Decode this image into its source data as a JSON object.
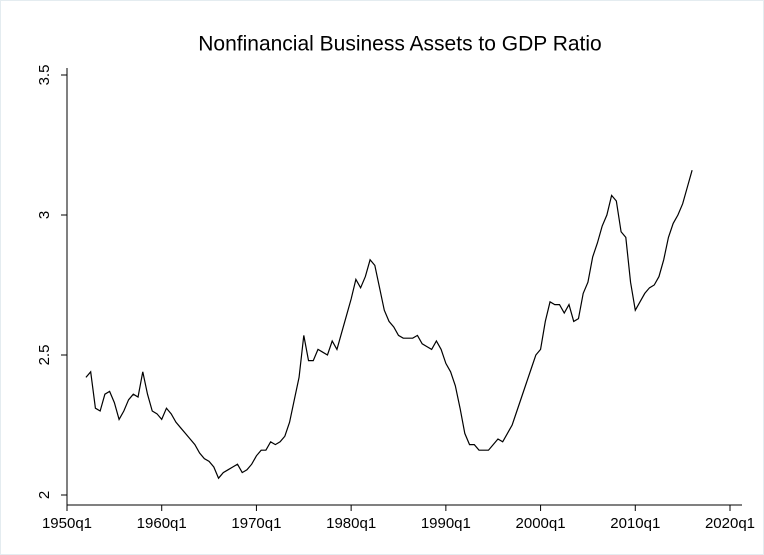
{
  "chart_data": {
    "type": "line",
    "title": "Nonfinancial Business Assets to GDP Ratio",
    "x": [
      "1952q1",
      "1952q3",
      "1953q1",
      "1953q3",
      "1954q1",
      "1954q3",
      "1955q1",
      "1955q3",
      "1956q1",
      "1956q3",
      "1957q1",
      "1957q3",
      "1958q1",
      "1958q3",
      "1959q1",
      "1959q3",
      "1960q1",
      "1960q3",
      "1961q1",
      "1961q3",
      "1962q1",
      "1962q3",
      "1963q1",
      "1963q3",
      "1964q1",
      "1964q3",
      "1965q1",
      "1965q3",
      "1966q1",
      "1966q3",
      "1967q1",
      "1967q3",
      "1968q1",
      "1968q3",
      "1969q1",
      "1969q3",
      "1970q1",
      "1970q3",
      "1971q1",
      "1971q3",
      "1972q1",
      "1972q3",
      "1973q1",
      "1973q3",
      "1974q1",
      "1974q3",
      "1975q1",
      "1975q3",
      "1976q1",
      "1976q3",
      "1977q1",
      "1977q3",
      "1978q1",
      "1978q3",
      "1979q1",
      "1979q3",
      "1980q1",
      "1980q3",
      "1981q1",
      "1981q3",
      "1982q1",
      "1982q3",
      "1983q1",
      "1983q3",
      "1984q1",
      "1984q3",
      "1985q1",
      "1985q3",
      "1986q1",
      "1986q3",
      "1987q1",
      "1987q3",
      "1988q1",
      "1988q3",
      "1989q1",
      "1989q3",
      "1990q1",
      "1990q3",
      "1991q1",
      "1991q3",
      "1992q1",
      "1992q3",
      "1993q1",
      "1993q3",
      "1994q1",
      "1994q3",
      "1995q1",
      "1995q3",
      "1996q1",
      "1996q3",
      "1997q1",
      "1997q3",
      "1998q1",
      "1998q3",
      "1999q1",
      "1999q3",
      "2000q1",
      "2000q3",
      "2001q1",
      "2001q3",
      "2002q1",
      "2002q3",
      "2003q1",
      "2003q3",
      "2004q1",
      "2004q3",
      "2005q1",
      "2005q3",
      "2006q1",
      "2006q3",
      "2007q1",
      "2007q3",
      "2008q1",
      "2008q3",
      "2009q1",
      "2009q3",
      "2010q1",
      "2010q3",
      "2011q1",
      "2011q3",
      "2012q1",
      "2012q3",
      "2013q1",
      "2013q3",
      "2014q1",
      "2014q3",
      "2015q1",
      "2015q3",
      "2016q1"
    ],
    "series": [
      {
        "color": "#000000",
        "values": [
          2.42,
          2.44,
          2.31,
          2.3,
          2.36,
          2.37,
          2.33,
          2.27,
          2.3,
          2.34,
          2.36,
          2.35,
          2.44,
          2.36,
          2.3,
          2.29,
          2.27,
          2.31,
          2.29,
          2.26,
          2.24,
          2.22,
          2.2,
          2.18,
          2.15,
          2.13,
          2.12,
          2.1,
          2.06,
          2.08,
          2.09,
          2.1,
          2.11,
          2.08,
          2.09,
          2.11,
          2.14,
          2.16,
          2.16,
          2.19,
          2.18,
          2.19,
          2.21,
          2.26,
          2.34,
          2.42,
          2.57,
          2.48,
          2.48,
          2.52,
          2.51,
          2.5,
          2.55,
          2.52,
          2.58,
          2.64,
          2.7,
          2.77,
          2.74,
          2.78,
          2.84,
          2.82,
          2.74,
          2.66,
          2.62,
          2.6,
          2.57,
          2.56,
          2.56,
          2.56,
          2.57,
          2.54,
          2.53,
          2.52,
          2.55,
          2.52,
          2.47,
          2.44,
          2.39,
          2.31,
          2.22,
          2.18,
          2.18,
          2.16,
          2.16,
          2.16,
          2.18,
          2.2,
          2.19,
          2.22,
          2.25,
          2.3,
          2.35,
          2.4,
          2.45,
          2.5,
          2.52,
          2.62,
          2.69,
          2.68,
          2.68,
          2.65,
          2.68,
          2.62,
          2.63,
          2.72,
          2.76,
          2.85,
          2.9,
          2.96,
          3.0,
          3.07,
          3.05,
          2.94,
          2.92,
          2.76,
          2.66,
          2.69,
          2.72,
          2.74,
          2.75,
          2.78,
          2.84,
          2.92,
          2.97,
          3.0,
          3.04,
          3.1,
          3.16
        ]
      }
    ],
    "xlim": [
      "1950q1",
      "2020q1"
    ],
    "xticks": [
      "1950q1",
      "1960q1",
      "1970q1",
      "1980q1",
      "1990q1",
      "2000q1",
      "2010q1",
      "2020q1"
    ],
    "ylim": [
      2,
      3.5
    ],
    "yticks": [
      2,
      2.5,
      3,
      3.5
    ],
    "grid": false
  }
}
